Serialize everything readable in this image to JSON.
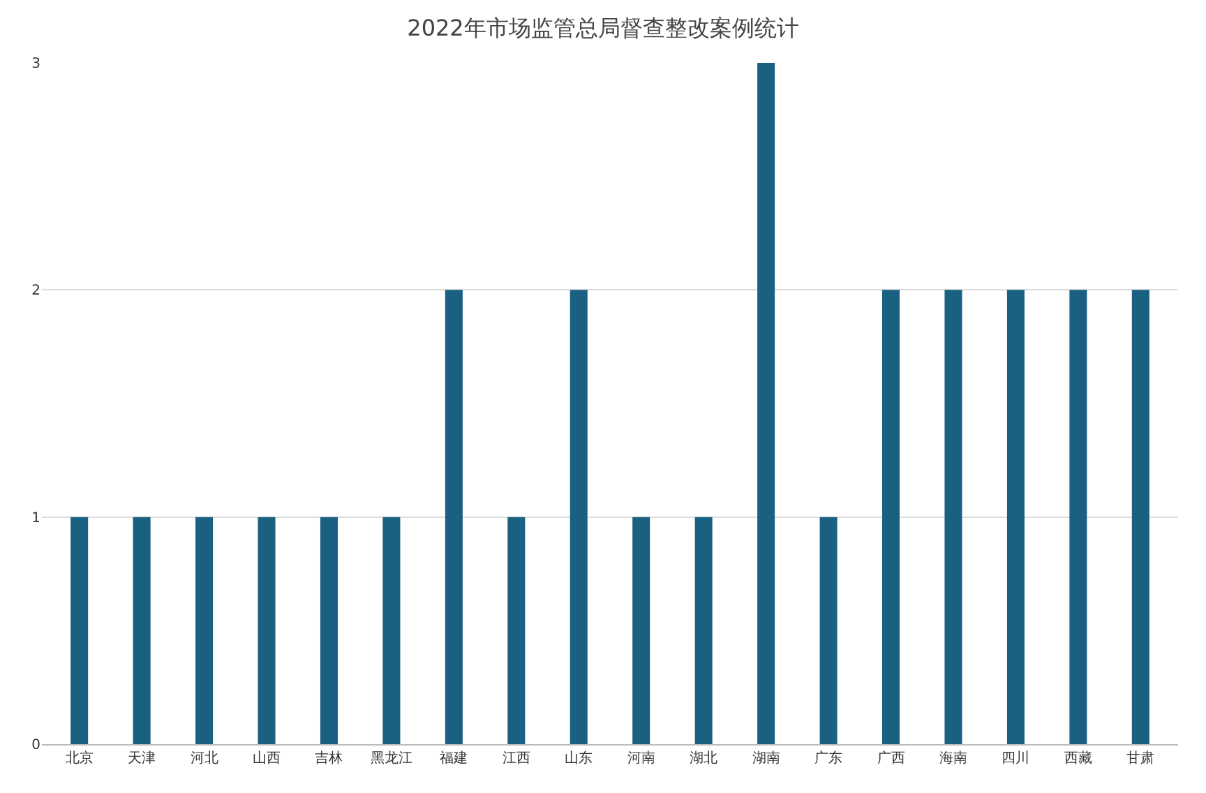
{
  "chart_data": {
    "type": "bar",
    "title": "2022年市场监管总局督查整改案例统计",
    "categories": [
      "北京",
      "天津",
      "河北",
      "山西",
      "吉林",
      "黑龙江",
      "福建",
      "江西",
      "山东",
      "河南",
      "湖北",
      "湖南",
      "广东",
      "广西",
      "海南",
      "四川",
      "西藏",
      "甘肃"
    ],
    "values": [
      1,
      1,
      1,
      1,
      1,
      1,
      2,
      1,
      2,
      1,
      1,
      3,
      1,
      2,
      2,
      2,
      2,
      2
    ],
    "color": "#1a6080",
    "ylim": [
      0,
      3
    ],
    "yticks": [
      0,
      1,
      2,
      3
    ],
    "grid": "y",
    "legend": false
  }
}
